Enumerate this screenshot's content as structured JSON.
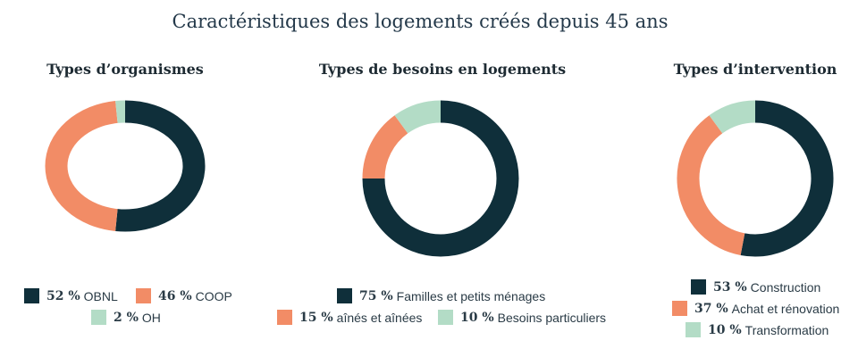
{
  "title": "Caractéristiques des logements créés depuis 45 ans",
  "colors": {
    "dark": "#0f2f3a",
    "orange": "#f28c66",
    "mint": "#b3dcc6"
  },
  "chart_data": [
    {
      "type": "pie",
      "title": "Types d’organismes",
      "series": [
        {
          "name": "OBNL",
          "value": 52,
          "pct_label": "52 %",
          "color": "#0f2f3a"
        },
        {
          "name": "COOP",
          "value": 46,
          "pct_label": "46 %",
          "color": "#f28c66"
        },
        {
          "name": "OH",
          "value": 2,
          "pct_label": "2 %",
          "color": "#b3dcc6"
        }
      ]
    },
    {
      "type": "pie",
      "title": "Types de besoins en logements",
      "series": [
        {
          "name": "Familles et petits ménages",
          "value": 75,
          "pct_label": "75 %",
          "color": "#0f2f3a"
        },
        {
          "name": "aînés et aînées",
          "value": 15,
          "pct_label": "15 %",
          "color": "#f28c66"
        },
        {
          "name": "Besoins particuliers",
          "value": 10,
          "pct_label": "10 %",
          "color": "#b3dcc6"
        }
      ]
    },
    {
      "type": "pie",
      "title": "Types d’intervention",
      "series": [
        {
          "name": "Construction",
          "value": 53,
          "pct_label": "53 %",
          "color": "#0f2f3a"
        },
        {
          "name": "Achat et rénovation",
          "value": 37,
          "pct_label": "37 %",
          "color": "#f28c66"
        },
        {
          "name": "Transformation",
          "value": 10,
          "pct_label": "10 %",
          "color": "#b3dcc6"
        }
      ]
    }
  ]
}
